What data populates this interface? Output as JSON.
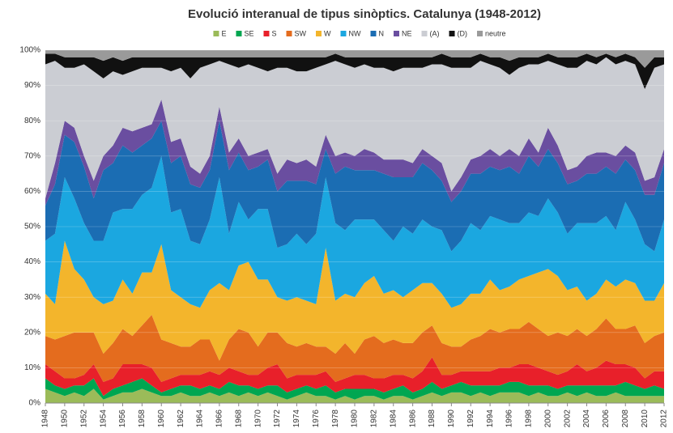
{
  "chart_data": {
    "type": "stacked_area",
    "title": "Evolució interanual de tipus sinòptics. Catalunya (1948-2012)",
    "categories": [
      "1948",
      null,
      "1950",
      null,
      "1952",
      null,
      "1954",
      null,
      "1956",
      null,
      "1958",
      null,
      "1960",
      null,
      "1962",
      null,
      "1964",
      null,
      "1966",
      null,
      "1968",
      null,
      "1970",
      null,
      "1972",
      null,
      "1974",
      null,
      "1976",
      null,
      "1978",
      null,
      "1980",
      null,
      "1982",
      null,
      "1984",
      null,
      "1986",
      null,
      "1988",
      null,
      "1990",
      null,
      "1992",
      null,
      "1994",
      null,
      "1996",
      null,
      "1998",
      null,
      "2000",
      null,
      "2002",
      null,
      "2004",
      null,
      "2006",
      null,
      "2008",
      null,
      "2010",
      null,
      "2012"
    ],
    "series": [
      {
        "name": "E",
        "color": "#9bbb59",
        "values": [
          4,
          3,
          2,
          3,
          2,
          4,
          1,
          2,
          3,
          3,
          4,
          3,
          2,
          2,
          3,
          2,
          2,
          3,
          2,
          3,
          2,
          3,
          2,
          3,
          2,
          1,
          2,
          3,
          2,
          2,
          1,
          2,
          1,
          2,
          2,
          1,
          2,
          2,
          1,
          2,
          3,
          2,
          3,
          3,
          2,
          3,
          2,
          3,
          3,
          3,
          2,
          3,
          2,
          2,
          3,
          2,
          3,
          2,
          2,
          3,
          2,
          2,
          2,
          2,
          2
        ]
      },
      {
        "name": "SE",
        "color": "#00a651",
        "values": [
          3,
          2,
          2,
          2,
          3,
          3,
          1,
          2,
          2,
          3,
          3,
          2,
          1,
          2,
          2,
          3,
          2,
          2,
          2,
          3,
          3,
          2,
          2,
          2,
          3,
          2,
          2,
          2,
          2,
          3,
          2,
          2,
          3,
          2,
          2,
          2,
          2,
          3,
          2,
          2,
          3,
          2,
          2,
          3,
          3,
          2,
          3,
          2,
          3,
          3,
          3,
          2,
          3,
          2,
          2,
          3,
          2,
          3,
          3,
          2,
          4,
          3,
          2,
          3,
          2
        ]
      },
      {
        "name": "S",
        "color": "#e8202a",
        "values": [
          4,
          4,
          3,
          2,
          3,
          4,
          4,
          3,
          6,
          5,
          4,
          5,
          3,
          3,
          3,
          3,
          4,
          4,
          4,
          4,
          4,
          3,
          4,
          5,
          6,
          4,
          4,
          3,
          4,
          4,
          3,
          3,
          4,
          4,
          3,
          4,
          4,
          3,
          4,
          5,
          7,
          4,
          3,
          3,
          4,
          4,
          4,
          5,
          4,
          5,
          6,
          5,
          4,
          4,
          4,
          6,
          4,
          5,
          7,
          6,
          5,
          5,
          3,
          4,
          5
        ]
      },
      {
        "name": "SW",
        "color": "#e46c1e",
        "values": [
          8,
          9,
          12,
          13,
          12,
          9,
          8,
          10,
          10,
          8,
          11,
          15,
          12,
          10,
          8,
          8,
          10,
          9,
          4,
          8,
          12,
          12,
          8,
          10,
          9,
          10,
          8,
          9,
          8,
          7,
          8,
          10,
          6,
          10,
          12,
          10,
          10,
          9,
          10,
          11,
          9,
          9,
          8,
          7,
          9,
          10,
          12,
          10,
          11,
          10,
          12,
          11,
          10,
          12,
          10,
          10,
          10,
          11,
          12,
          10,
          10,
          12,
          10,
          10,
          11
        ]
      },
      {
        "name": "W",
        "color": "#f3b52c",
        "values": [
          12,
          10,
          27,
          18,
          15,
          10,
          14,
          12,
          14,
          12,
          15,
          12,
          27,
          15,
          14,
          12,
          9,
          14,
          22,
          14,
          18,
          20,
          19,
          15,
          10,
          12,
          14,
          12,
          12,
          28,
          15,
          14,
          16,
          16,
          17,
          14,
          14,
          13,
          15,
          14,
          12,
          14,
          11,
          12,
          13,
          12,
          14,
          12,
          12,
          14,
          13,
          16,
          19,
          16,
          13,
          12,
          10,
          10,
          11,
          12,
          14,
          12,
          12,
          10,
          14
        ]
      },
      {
        "name": "NW",
        "color": "#1ba7e0",
        "values": [
          15,
          20,
          18,
          20,
          16,
          16,
          18,
          25,
          20,
          24,
          22,
          24,
          25,
          22,
          25,
          18,
          18,
          20,
          30,
          16,
          18,
          12,
          20,
          20,
          14,
          16,
          18,
          16,
          20,
          20,
          22,
          18,
          22,
          18,
          16,
          18,
          14,
          20,
          16,
          18,
          16,
          18,
          16,
          18,
          20,
          18,
          18,
          20,
          18,
          16,
          18,
          16,
          20,
          18,
          16,
          18,
          22,
          20,
          18,
          16,
          22,
          18,
          16,
          14,
          18
        ]
      },
      {
        "name": "N",
        "color": "#1b6db3",
        "values": [
          10,
          14,
          12,
          16,
          16,
          12,
          20,
          14,
          18,
          16,
          14,
          14,
          10,
          14,
          15,
          16,
          16,
          14,
          16,
          18,
          14,
          14,
          12,
          14,
          16,
          18,
          15,
          18,
          14,
          8,
          14,
          18,
          14,
          14,
          14,
          16,
          18,
          14,
          16,
          16,
          16,
          14,
          14,
          14,
          14,
          16,
          14,
          14,
          16,
          14,
          16,
          14,
          14,
          14,
          14,
          12,
          14,
          14,
          14,
          16,
          12,
          14,
          14,
          16,
          16
        ]
      },
      {
        "name": "NE",
        "color": "#6a4ea0",
        "values": [
          2,
          6,
          4,
          4,
          3,
          5,
          4,
          5,
          5,
          6,
          5,
          4,
          6,
          6,
          5,
          5,
          4,
          4,
          4,
          5,
          4,
          4,
          4,
          3,
          5,
          6,
          5,
          6,
          5,
          4,
          5,
          4,
          4,
          6,
          5,
          4,
          5,
          5,
          4,
          4,
          4,
          5,
          3,
          4,
          4,
          5,
          5,
          4,
          5,
          5,
          5,
          4,
          6,
          5,
          4,
          4,
          5,
          6,
          4,
          5,
          4,
          5,
          4,
          5,
          4
        ]
      },
      {
        "name": "(A)",
        "color": "#cbcdd3",
        "values": [
          38,
          29,
          15,
          17,
          26,
          31,
          22,
          21,
          15,
          17,
          17,
          16,
          9,
          20,
          20,
          25,
          30,
          26,
          13,
          25,
          20,
          26,
          24,
          22,
          30,
          26,
          26,
          25,
          28,
          20,
          27,
          25,
          25,
          24,
          24,
          26,
          25,
          26,
          27,
          23,
          26,
          28,
          35,
          31,
          26,
          27,
          24,
          25,
          21,
          25,
          21,
          25,
          19,
          23,
          29,
          28,
          27,
          25,
          27,
          26,
          24,
          25,
          26,
          31,
          24
        ]
      },
      {
        "name": "(D)",
        "color": "#111111",
        "values": [
          3,
          2,
          3,
          3,
          2,
          4,
          5,
          4,
          4,
          4,
          3,
          3,
          3,
          4,
          3,
          6,
          3,
          2,
          1,
          2,
          3,
          2,
          3,
          4,
          3,
          3,
          4,
          4,
          3,
          2,
          2,
          2,
          3,
          2,
          3,
          3,
          4,
          3,
          3,
          3,
          2,
          3,
          3,
          3,
          3,
          2,
          2,
          3,
          4,
          3,
          2,
          2,
          2,
          2,
          3,
          3,
          2,
          2,
          1,
          2,
          2,
          2,
          6,
          3,
          2
        ]
      },
      {
        "name": "neutre",
        "color": "#9a9a9a",
        "values": [
          1,
          1,
          2,
          2,
          2,
          2,
          3,
          2,
          3,
          2,
          2,
          2,
          2,
          2,
          2,
          2,
          2,
          2,
          2,
          2,
          2,
          2,
          2,
          2,
          2,
          2,
          2,
          2,
          2,
          2,
          1,
          2,
          2,
          2,
          2,
          2,
          2,
          2,
          2,
          2,
          2,
          1,
          2,
          2,
          2,
          1,
          2,
          2,
          3,
          2,
          2,
          2,
          1,
          2,
          2,
          2,
          1,
          2,
          1,
          2,
          1,
          2,
          5,
          2,
          2
        ]
      }
    ],
    "ylim": [
      0,
      100
    ],
    "yticks": [
      {
        "value": 0,
        "label": "0%"
      },
      {
        "value": 10,
        "label": "10%"
      },
      {
        "value": 20,
        "label": "20%"
      },
      {
        "value": 30,
        "label": "30%"
      },
      {
        "value": 40,
        "label": "40%"
      },
      {
        "value": 50,
        "label": "50%"
      },
      {
        "value": 60,
        "label": "60%"
      },
      {
        "value": 70,
        "label": "70%"
      },
      {
        "value": 80,
        "label": "80%"
      },
      {
        "value": 90,
        "label": "90%"
      },
      {
        "value": 100,
        "label": "100%"
      }
    ],
    "grid": true,
    "legend": "top"
  }
}
